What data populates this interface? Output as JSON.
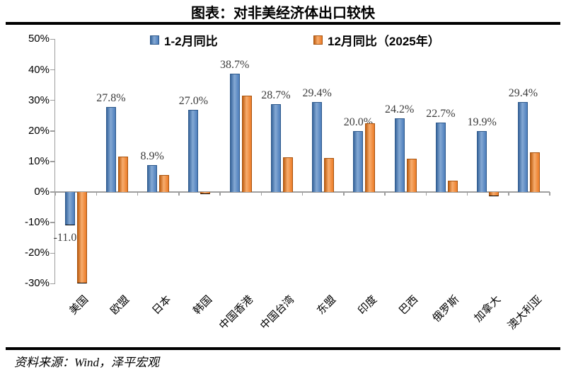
{
  "title": "图表：对非美经济体出口较快",
  "source": "资料来源：Wind，泽平宏观",
  "colors": {
    "series1": "#4f81bd",
    "series2": "#ed7d31",
    "axis": "#9e9e9e",
    "label_text": "#3b3b3b",
    "rule": "#000000"
  },
  "chart_data": {
    "type": "bar",
    "title": "图表：对非美经济体出口较快",
    "categories": [
      "美国",
      "欧盟",
      "日本",
      "韩国",
      "中国香港",
      "中国台湾",
      "东盟",
      "印度",
      "巴西",
      "俄罗斯",
      "加拿大",
      "澳大利亚"
    ],
    "series": [
      {
        "name": "1-2月同比",
        "color": "#4f81bd",
        "values": [
          -11.0,
          27.8,
          8.9,
          27.0,
          38.7,
          28.7,
          29.4,
          20.0,
          24.2,
          22.7,
          19.9,
          29.4
        ],
        "labels": [
          "-11.0%",
          "27.8%",
          "8.9%",
          "27.0%",
          "38.7%",
          "28.7%",
          "29.4%",
          "20.0%",
          "24.2%",
          "22.7%",
          "19.9%",
          "29.4%"
        ]
      },
      {
        "name": "12月同比（2025年）",
        "color": "#ed7d31",
        "values": [
          -30.0,
          11.5,
          5.5,
          -0.7,
          31.5,
          11.3,
          11.2,
          22.4,
          11.0,
          3.7,
          -1.5,
          13.0
        ]
      }
    ],
    "y_ticks": [
      "50%",
      "40%",
      "30%",
      "20%",
      "10%",
      "0%",
      "-10%",
      "-20%",
      "-30%"
    ],
    "y_tick_values": [
      50,
      40,
      30,
      20,
      10,
      0,
      -10,
      -20,
      -30
    ],
    "ylim": [
      -30,
      50
    ],
    "grid": false,
    "legend_position": "top",
    "xlabel": "",
    "ylabel": ""
  }
}
